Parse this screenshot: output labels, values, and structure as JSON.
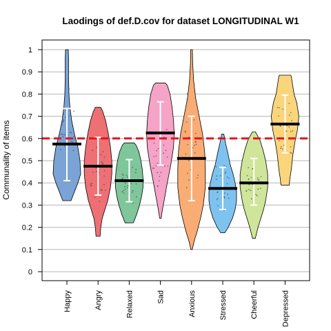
{
  "chart_data": {
    "type": "violin",
    "title": "Laodings of def.D.cov for dataset LONGITUDINAL W1",
    "xlabel": "",
    "ylabel": "Communality of items",
    "ylim": [
      0,
      1
    ],
    "yticks": [
      "0",
      "0.1",
      "0.2",
      "0.3",
      "0.4",
      "0.5",
      "0.6",
      "0.7",
      "0.8",
      "0.9",
      "1"
    ],
    "grid": true,
    "reference_line": {
      "value": 0.6,
      "color": "#e8121b",
      "style": "dashed"
    },
    "categories": [
      "Happy",
      "Angry",
      "Relaxed",
      "Sad",
      "Anxious",
      "Stressed",
      "Cheerful",
      "Depressed"
    ],
    "series": [
      {
        "category": "Happy",
        "color": "#7ba3d6",
        "min": 0.32,
        "max": 1.0,
        "mean": 0.575,
        "sd_low": 0.41,
        "sd_high": 0.735,
        "profile": [
          [
            0.32,
            0.3
          ],
          [
            0.36,
            0.55
          ],
          [
            0.4,
            0.8
          ],
          [
            0.44,
            1.0
          ],
          [
            0.5,
            0.95
          ],
          [
            0.56,
            0.8
          ],
          [
            0.62,
            0.55
          ],
          [
            0.68,
            0.35
          ],
          [
            0.74,
            0.22
          ],
          [
            0.8,
            0.15
          ],
          [
            0.88,
            0.12
          ],
          [
            0.96,
            0.12
          ],
          [
            1.0,
            0.1
          ]
        ]
      },
      {
        "category": "Angry",
        "color": "#ee7075",
        "min": 0.16,
        "max": 0.74,
        "mean": 0.475,
        "sd_low": 0.345,
        "sd_high": 0.605,
        "profile": [
          [
            0.16,
            0.15
          ],
          [
            0.2,
            0.2
          ],
          [
            0.24,
            0.3
          ],
          [
            0.28,
            0.5
          ],
          [
            0.32,
            0.7
          ],
          [
            0.38,
            0.9
          ],
          [
            0.44,
            1.0
          ],
          [
            0.5,
            1.0
          ],
          [
            0.56,
            0.9
          ],
          [
            0.62,
            0.75
          ],
          [
            0.68,
            0.55
          ],
          [
            0.72,
            0.35
          ],
          [
            0.74,
            0.2
          ]
        ]
      },
      {
        "category": "Relaxed",
        "color": "#7fc69a",
        "min": 0.22,
        "max": 0.58,
        "mean": 0.41,
        "sd_low": 0.315,
        "sd_high": 0.505,
        "profile": [
          [
            0.22,
            0.3
          ],
          [
            0.26,
            0.55
          ],
          [
            0.3,
            0.75
          ],
          [
            0.34,
            0.9
          ],
          [
            0.38,
            1.0
          ],
          [
            0.42,
            1.0
          ],
          [
            0.46,
            0.95
          ],
          [
            0.5,
            0.85
          ],
          [
            0.54,
            0.7
          ],
          [
            0.57,
            0.5
          ],
          [
            0.58,
            0.35
          ]
        ]
      },
      {
        "category": "Sad",
        "color": "#f5a3c7",
        "min": 0.24,
        "max": 0.85,
        "mean": 0.625,
        "sd_low": 0.48,
        "sd_high": 0.765,
        "profile": [
          [
            0.24,
            0.05
          ],
          [
            0.28,
            0.15
          ],
          [
            0.33,
            0.3
          ],
          [
            0.4,
            0.5
          ],
          [
            0.48,
            0.75
          ],
          [
            0.56,
            0.95
          ],
          [
            0.62,
            1.0
          ],
          [
            0.68,
            0.95
          ],
          [
            0.74,
            0.85
          ],
          [
            0.8,
            0.7
          ],
          [
            0.84,
            0.5
          ],
          [
            0.85,
            0.35
          ]
        ]
      },
      {
        "category": "Anxious",
        "color": "#f9ac74",
        "min": 0.1,
        "max": 1.0,
        "mean": 0.51,
        "sd_low": 0.32,
        "sd_high": 0.7,
        "profile": [
          [
            0.1,
            0.05
          ],
          [
            0.14,
            0.2
          ],
          [
            0.18,
            0.4
          ],
          [
            0.24,
            0.65
          ],
          [
            0.3,
            0.85
          ],
          [
            0.38,
            1.0
          ],
          [
            0.46,
            1.0
          ],
          [
            0.54,
            0.95
          ],
          [
            0.62,
            0.8
          ],
          [
            0.7,
            0.55
          ],
          [
            0.78,
            0.3
          ],
          [
            0.86,
            0.15
          ],
          [
            0.94,
            0.08
          ],
          [
            1.0,
            0.06
          ]
        ]
      },
      {
        "category": "Stressed",
        "color": "#7ec3ef",
        "min": 0.175,
        "max": 0.62,
        "mean": 0.375,
        "sd_low": 0.28,
        "sd_high": 0.47,
        "profile": [
          [
            0.175,
            0.15
          ],
          [
            0.2,
            0.4
          ],
          [
            0.24,
            0.7
          ],
          [
            0.28,
            0.9
          ],
          [
            0.32,
            1.0
          ],
          [
            0.36,
            1.0
          ],
          [
            0.4,
            0.9
          ],
          [
            0.44,
            0.75
          ],
          [
            0.48,
            0.55
          ],
          [
            0.54,
            0.35
          ],
          [
            0.58,
            0.2
          ],
          [
            0.62,
            0.08
          ]
        ]
      },
      {
        "category": "Cheerful",
        "color": "#cfe59a",
        "min": 0.15,
        "max": 0.63,
        "mean": 0.4,
        "sd_low": 0.3,
        "sd_high": 0.51,
        "profile": [
          [
            0.15,
            0.1
          ],
          [
            0.2,
            0.3
          ],
          [
            0.24,
            0.5
          ],
          [
            0.28,
            0.7
          ],
          [
            0.32,
            0.85
          ],
          [
            0.38,
            1.0
          ],
          [
            0.44,
            1.0
          ],
          [
            0.5,
            0.85
          ],
          [
            0.55,
            0.65
          ],
          [
            0.59,
            0.45
          ],
          [
            0.62,
            0.2
          ],
          [
            0.63,
            0.1
          ]
        ]
      },
      {
        "category": "Depressed",
        "color": "#fbd57c",
        "min": 0.39,
        "max": 0.885,
        "mean": 0.665,
        "sd_low": 0.535,
        "sd_high": 0.795,
        "profile": [
          [
            0.39,
            0.3
          ],
          [
            0.42,
            0.35
          ],
          [
            0.46,
            0.45
          ],
          [
            0.52,
            0.55
          ],
          [
            0.58,
            0.7
          ],
          [
            0.64,
            0.9
          ],
          [
            0.7,
            1.0
          ],
          [
            0.76,
            0.85
          ],
          [
            0.8,
            0.65
          ],
          [
            0.84,
            0.55
          ],
          [
            0.88,
            0.45
          ],
          [
            0.885,
            0.4
          ]
        ]
      }
    ]
  }
}
